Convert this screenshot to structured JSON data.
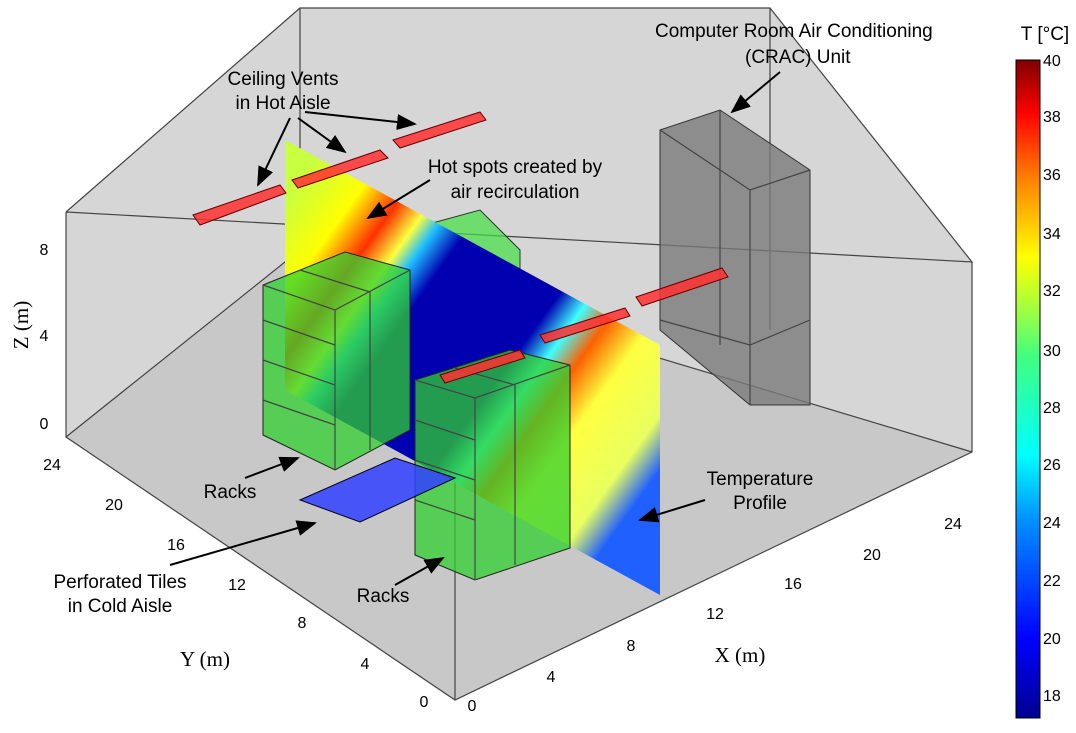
{
  "annotations": [
    {
      "lines": [
        "Computer Room Air Conditioning",
        "(CRAC) Unit"
      ]
    },
    {
      "lines": [
        "Ceiling Vents",
        "in Hot Aisle"
      ]
    },
    {
      "lines": [
        "Hot spots created by",
        "air recirculation"
      ]
    },
    {
      "lines": [
        "Racks"
      ]
    },
    {
      "lines": [
        "Racks"
      ]
    },
    {
      "lines": [
        "Temperature",
        "Profile"
      ]
    },
    {
      "lines": [
        "Perforated Tiles",
        "in Cold Aisle"
      ]
    }
  ],
  "axes": {
    "x": {
      "label": "X (m)",
      "ticks": [
        0,
        4,
        8,
        12,
        16,
        20,
        24
      ]
    },
    "y": {
      "label": "Y (m)",
      "ticks": [
        0,
        4,
        8,
        12,
        16,
        20,
        24
      ]
    },
    "z": {
      "label": "Z (m)",
      "ticks": [
        0,
        4,
        8
      ]
    }
  },
  "colorbar": {
    "title": "T [°C]",
    "ticks": [
      40,
      38,
      36,
      34,
      32,
      30,
      28,
      26,
      24,
      22,
      20,
      18
    ]
  }
}
